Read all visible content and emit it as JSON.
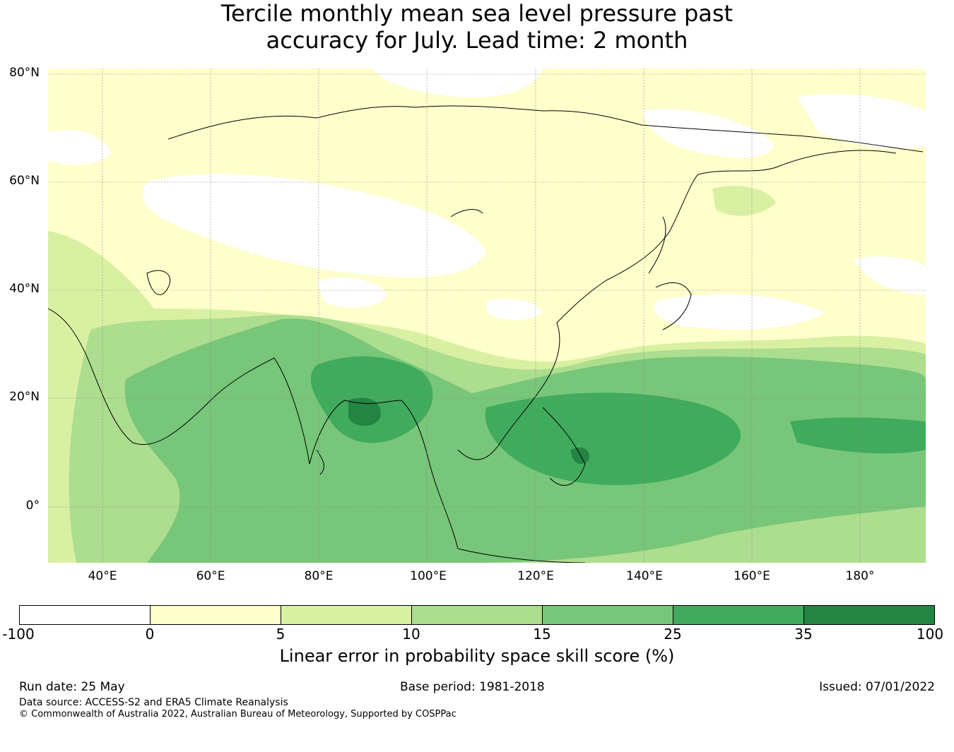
{
  "title": {
    "line1": "Tercile monthly mean sea level pressure past",
    "line2": "accuracy for July. Lead time: 2 month"
  },
  "map": {
    "lat_labels": [
      "80°N",
      "60°N",
      "40°N",
      "20°N",
      "0°"
    ],
    "lon_labels": [
      "40°E",
      "60°E",
      "80°E",
      "100°E",
      "120°E",
      "140°E",
      "160°E",
      "180°"
    ],
    "extent": {
      "lon_min": 30,
      "lon_max": 192,
      "lat_min": -10,
      "lat_max": 81
    }
  },
  "colorbar": {
    "ticks": [
      "-100",
      "0",
      "5",
      "10",
      "15",
      "25",
      "35",
      "100"
    ],
    "colors": [
      "#ffffff",
      "#ffffcc",
      "#d9f0a3",
      "#addd8e",
      "#78c679",
      "#41ab5d",
      "#238443"
    ],
    "label": "Linear error in probability space skill score (%)"
  },
  "footer": {
    "run_date": "Run date: 25 May",
    "base_period": "Base period: 1981-2018",
    "issued": "Issued: 07/01/2022",
    "data_source": "Data source: ACCESS-S2 and ERA5 Climate Reanalysis",
    "copyright": "© Commonwealth of Australia 2022, Australian Bureau of Meteorology, Supported by COSPPac"
  }
}
